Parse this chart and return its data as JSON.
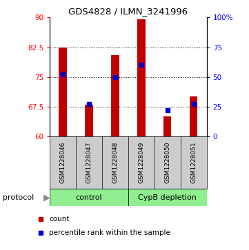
{
  "title": "GDS4828 / ILMN_3241996",
  "samples": [
    "GSM1228046",
    "GSM1228047",
    "GSM1228048",
    "GSM1228049",
    "GSM1228050",
    "GSM1228051"
  ],
  "bar_tops": [
    82.5,
    68.0,
    80.5,
    89.5,
    65.0,
    70.0
  ],
  "bar_base": 60,
  "percentile_ranks": [
    52,
    27,
    50,
    60,
    22,
    27
  ],
  "ylim_left": [
    60,
    90
  ],
  "ylim_right": [
    0,
    100
  ],
  "yticks_left": [
    60,
    67.5,
    75,
    82.5,
    90
  ],
  "yticks_right": [
    0,
    25,
    50,
    75,
    100
  ],
  "ytick_labels_left": [
    "60",
    "67.5",
    "75",
    "82.5",
    "90"
  ],
  "ytick_labels_right": [
    "0",
    "25",
    "50",
    "75",
    "100%"
  ],
  "bar_color": "#c00000",
  "blue_color": "#0000cc",
  "control_color": "#90ee90",
  "depletion_color": "#90ee90",
  "gray_color": "#cccccc",
  "control_samples": [
    0,
    1,
    2
  ],
  "depletion_samples": [
    3,
    4,
    5
  ],
  "control_label": "control",
  "depletion_label": "CypB depletion",
  "protocol_label": "protocol",
  "legend_count": "count",
  "legend_pct": "percentile rank within the sample",
  "grid_ticks": [
    67.5,
    75,
    82.5
  ]
}
